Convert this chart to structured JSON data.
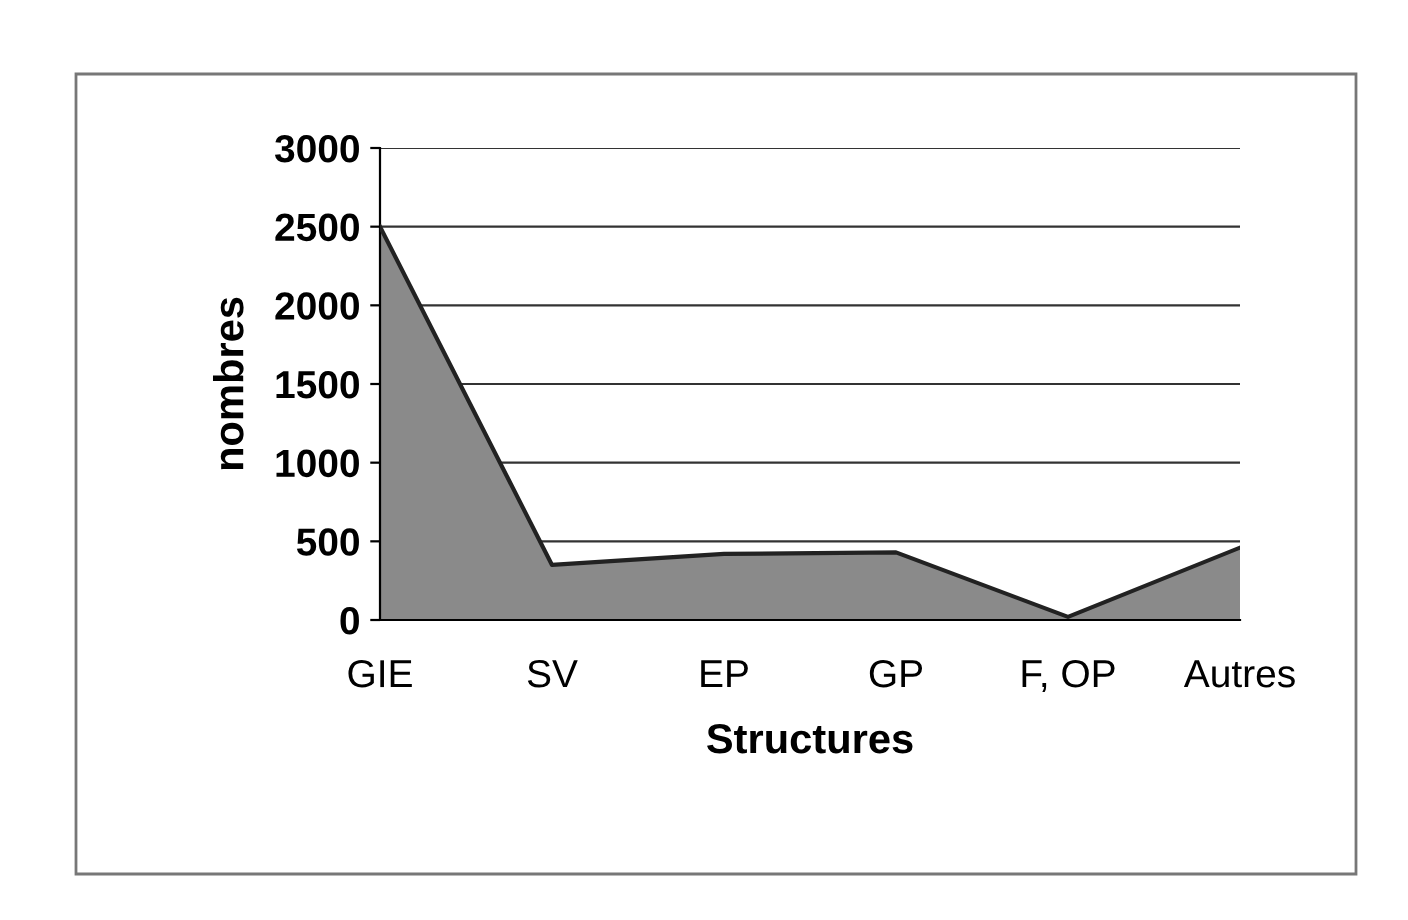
{
  "chart_data": {
    "type": "area",
    "categories": [
      "GIE",
      "SV",
      "EP",
      "GP",
      "F, OP",
      "Autres"
    ],
    "series": [
      {
        "color": "#8a8a8a",
        "values": [
          2500,
          350,
          420,
          430,
          20,
          460
        ]
      }
    ],
    "xlabel": "Structures",
    "ylabel": "nombres",
    "ylim": [
      0,
      3000
    ],
    "yticks": [
      0,
      500,
      1000,
      1500,
      2000,
      2500,
      3000
    ],
    "grid": "y",
    "legend": false
  }
}
